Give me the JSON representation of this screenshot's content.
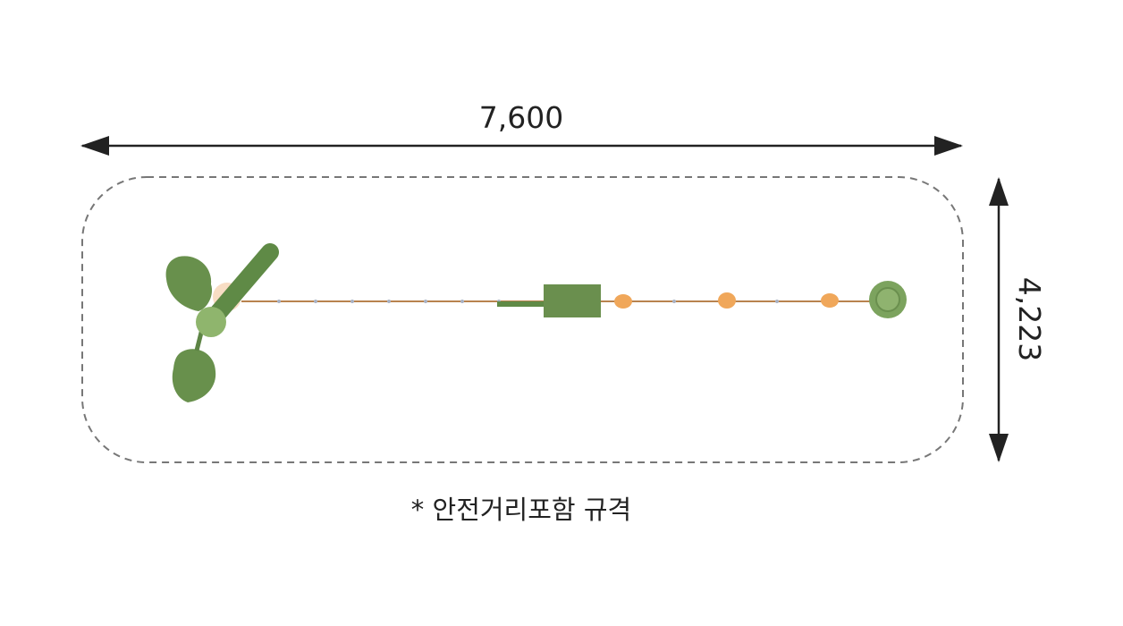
{
  "dimensions": {
    "width_label": "7,600",
    "height_label": "4,223"
  },
  "caption": "* 안전거리포함 규격",
  "colors": {
    "equipment_green": "#6a8f4e",
    "rope": "#b8834f",
    "bead": "#f0a75a",
    "dimension_line": "#222222",
    "safety_boundary": "#777777"
  }
}
